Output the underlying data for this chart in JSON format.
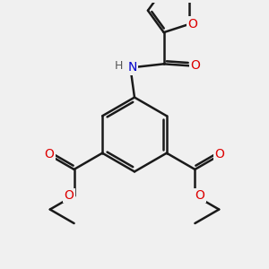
{
  "background_color": "#f0f0f0",
  "bond_color": "#1a1a1a",
  "bond_width": 1.8,
  "atom_colors": {
    "O": "#dd0000",
    "N": "#0000cc",
    "H": "#555555"
  },
  "font_size": 10,
  "fig_size": [
    3.0,
    3.0
  ],
  "dpi": 100,
  "xlim": [
    -2.8,
    2.8
  ],
  "ylim": [
    -3.2,
    3.2
  ]
}
